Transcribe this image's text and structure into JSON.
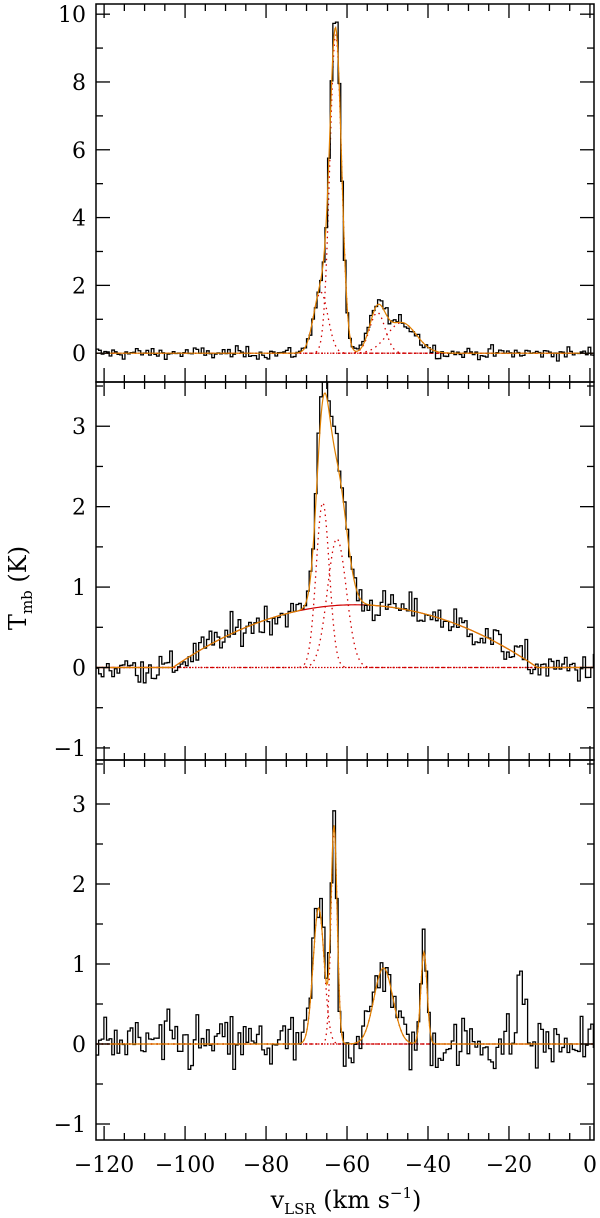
{
  "chart_data": {
    "type": "line",
    "xlabel": {
      "main": "v",
      "sub": "LSR",
      "units": " (km s",
      "exp": "−1",
      "close": ")"
    },
    "ylabel": {
      "main": "T",
      "sub": "mb",
      "units": " (K)"
    },
    "xlim": [
      -122,
      1
    ],
    "x_ticks": [
      -120,
      -100,
      -80,
      -60,
      -40,
      -20,
      0
    ],
    "x_tick_labels": [
      "−120",
      "−100",
      "−80",
      "−60",
      "−40",
      "−20",
      "0"
    ],
    "colors": {
      "spectrum": "#000000",
      "fit": "#e08000",
      "component": "#d00000",
      "baseline": "#d00000"
    },
    "panels": [
      {
        "name": "top",
        "ylim": [
          -0.85,
          10.3
        ],
        "y_ticks": [
          0,
          2,
          4,
          6,
          8,
          10
        ],
        "y_tick_labels": [
          "0",
          "2",
          "4",
          "6",
          "8",
          "10"
        ],
        "minor_step": 1,
        "noise_rms": 0.09,
        "fit_components": [
          {
            "center": -66.5,
            "amplitude": 1.8,
            "fwhm": 4.2
          },
          {
            "center": -62.8,
            "amplitude": 9.4,
            "fwhm": 3.4
          },
          {
            "center": -52.5,
            "amplitude": 1.2,
            "fwhm": 4.5
          },
          {
            "center": -46.5,
            "amplitude": 0.9,
            "fwhm": 8.5
          }
        ],
        "spectrum_peaks": [
          {
            "center": -66.5,
            "amplitude": 1.8,
            "fwhm": 4.2
          },
          {
            "center": -62.8,
            "amplitude": 9.7,
            "fwhm": 3.3
          },
          {
            "center": -52.5,
            "amplitude": 1.3,
            "fwhm": 4.5
          },
          {
            "center": -46.5,
            "amplitude": 0.9,
            "fwhm": 8.5
          }
        ],
        "plateau": null
      },
      {
        "name": "middle",
        "ylim": [
          -1.15,
          3.55
        ],
        "y_ticks": [
          -1,
          0,
          1,
          2,
          3
        ],
        "y_tick_labels": [
          "−1",
          "0",
          "1",
          "2",
          "3"
        ],
        "minor_step": 0.5,
        "noise_rms": 0.1,
        "fit_components": [
          {
            "center": -66.0,
            "amplitude": 2.05,
            "fwhm": 3.8
          },
          {
            "center": -62.5,
            "amplitude": 1.6,
            "fwhm": 5.5
          }
        ],
        "spectrum_peaks": [
          {
            "center": -66.0,
            "amplitude": 2.3,
            "fwhm": 3.8
          },
          {
            "center": -62.5,
            "amplitude": 1.7,
            "fwhm": 5.5
          }
        ],
        "plateau": {
          "center": -58.0,
          "amplitude": 0.78,
          "half_width": 45.0
        }
      },
      {
        "name": "bottom",
        "ylim": [
          -1.2,
          3.55
        ],
        "y_ticks": [
          -1,
          0,
          1,
          2,
          3
        ],
        "y_tick_labels": [
          "−1",
          "0",
          "1",
          "2",
          "3"
        ],
        "minor_step": 0.5,
        "noise_rms": 0.18,
        "fit_components": [
          {
            "center": -67.0,
            "amplitude": 1.7,
            "fwhm": 3.2
          },
          {
            "center": -63.2,
            "amplitude": 2.7,
            "fwhm": 1.8
          },
          {
            "center": -51.0,
            "amplitude": 0.95,
            "fwhm": 5.5
          },
          {
            "center": -41.0,
            "amplitude": 1.15,
            "fwhm": 1.8
          }
        ],
        "spectrum_peaks": [
          {
            "center": -67.0,
            "amplitude": 1.8,
            "fwhm": 3.2
          },
          {
            "center": -63.2,
            "amplitude": 2.9,
            "fwhm": 1.8
          },
          {
            "center": -51.0,
            "amplitude": 1.0,
            "fwhm": 5.5
          },
          {
            "center": -41.0,
            "amplitude": 1.2,
            "fwhm": 1.8
          },
          {
            "center": -17.0,
            "amplitude": 0.9,
            "fwhm": 2.0
          }
        ],
        "plateau": null
      }
    ]
  }
}
